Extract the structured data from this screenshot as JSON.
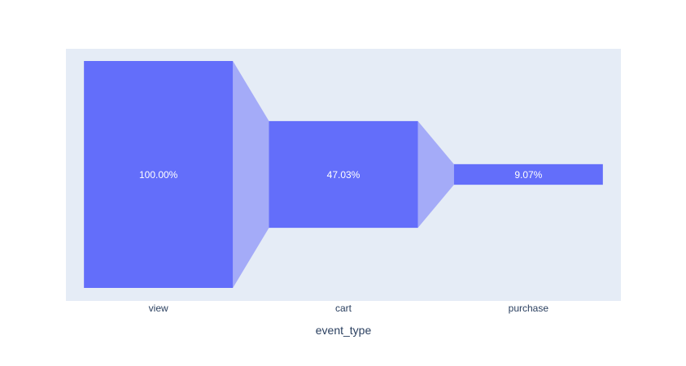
{
  "chart_data": {
    "type": "funnel",
    "orientation": "vertical-stages",
    "categories": [
      "view",
      "cart",
      "purchase"
    ],
    "values": [
      100.0,
      47.03,
      9.07
    ],
    "value_labels": [
      "100.00%",
      "47.03%",
      "9.07%"
    ],
    "xlabel": "event_type",
    "ylabel": "",
    "title": "",
    "grid": false,
    "legend": "none"
  },
  "colors": {
    "plot_background": "#e5ecf6",
    "bar": "#636efa",
    "connector": "#a4abf8",
    "text": "#2a3f5f",
    "label_text": "#ffffff"
  }
}
